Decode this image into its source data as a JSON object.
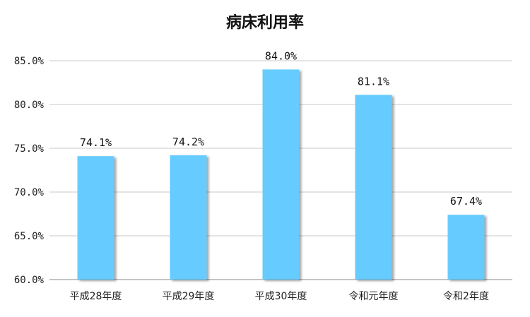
{
  "chart_data": {
    "type": "bar",
    "title": "病床利用率",
    "categories": [
      "平成28年度",
      "平成29年度",
      "平成30年度",
      "令和元年度",
      "令和2年度"
    ],
    "values": [
      74.1,
      74.2,
      84.0,
      81.1,
      67.4
    ],
    "data_labels": [
      "74.1%",
      "74.2%",
      "84.0%",
      "81.1%",
      "67.4%"
    ],
    "y_ticks": [
      60.0,
      65.0,
      70.0,
      75.0,
      80.0,
      85.0
    ],
    "y_tick_labels": [
      "60.0%",
      "65.0%",
      "70.0%",
      "75.0%",
      "80.0%",
      "85.0%"
    ],
    "ylim": [
      60,
      85
    ],
    "grid": true,
    "bar_color": "#66CCFF",
    "xlabel": "",
    "ylabel": ""
  }
}
